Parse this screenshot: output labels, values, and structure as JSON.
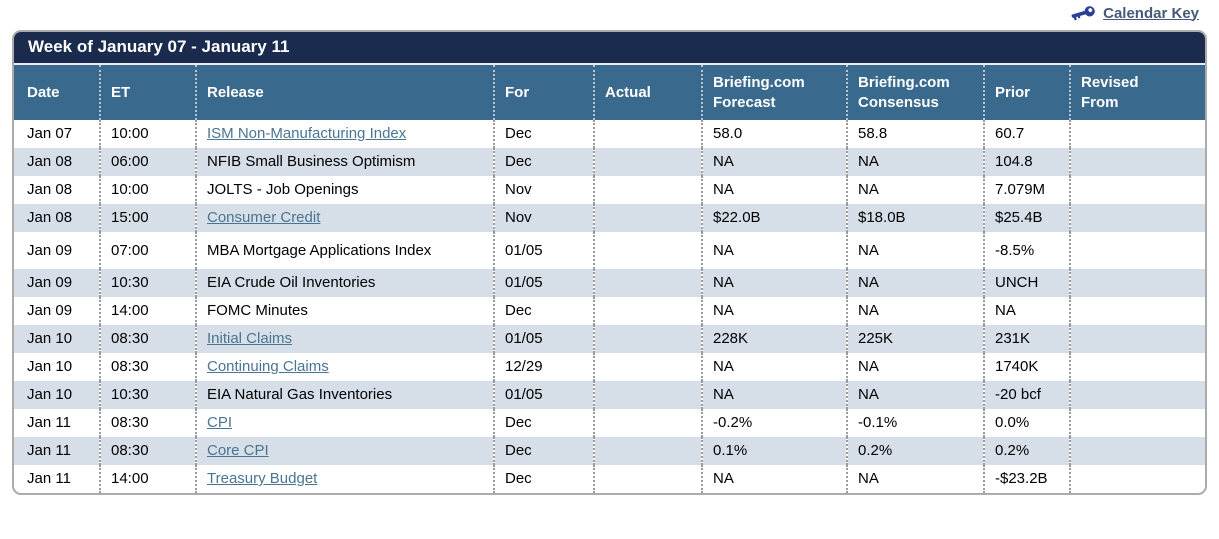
{
  "calendar_key": {
    "label": "Calendar Key",
    "icon": "key-icon"
  },
  "panel": {
    "title": "Week of January 07 - January 11",
    "columns": [
      {
        "id": "date",
        "label": "Date"
      },
      {
        "id": "et",
        "label": "ET"
      },
      {
        "id": "release",
        "label": "Release"
      },
      {
        "id": "for",
        "label": "For"
      },
      {
        "id": "actual",
        "label": "Actual"
      },
      {
        "id": "forecast",
        "label": "Briefing.com Forecast",
        "lines": [
          "Briefing.com",
          "Forecast"
        ]
      },
      {
        "id": "consensus",
        "label": "Briefing.com Consensus",
        "lines": [
          "Briefing.com",
          "Consensus"
        ]
      },
      {
        "id": "prior",
        "label": "Prior"
      },
      {
        "id": "revised",
        "label": "Revised From",
        "lines": [
          "Revised",
          "From"
        ]
      }
    ],
    "rows": [
      {
        "date": "Jan 07",
        "et": "10:00",
        "release": "ISM Non-Manufacturing Index",
        "link": true,
        "for": "Dec",
        "actual": "",
        "forecast": "58.0",
        "consensus": "58.8",
        "prior": "60.7",
        "revised": ""
      },
      {
        "date": "Jan 08",
        "et": "06:00",
        "release": "NFIB Small Business Optimism",
        "link": false,
        "for": "Dec",
        "actual": "",
        "forecast": "NA",
        "consensus": "NA",
        "prior": "104.8",
        "revised": ""
      },
      {
        "date": "Jan 08",
        "et": "10:00",
        "release": "JOLTS - Job Openings",
        "link": false,
        "for": "Nov",
        "actual": "",
        "forecast": "NA",
        "consensus": "NA",
        "prior": "7.079M",
        "revised": ""
      },
      {
        "date": "Jan 08",
        "et": "15:00",
        "release": "Consumer Credit",
        "link": true,
        "for": "Nov",
        "actual": "",
        "forecast": "$22.0B",
        "consensus": "$18.0B",
        "prior": "$25.4B",
        "revised": ""
      },
      {
        "date": "Jan 09",
        "et": "07:00",
        "release": "MBA Mortgage Applications Index",
        "link": false,
        "for": "01/05",
        "actual": "",
        "forecast": "NA",
        "consensus": "NA",
        "prior": "-8.5%",
        "revised": "",
        "tall": true
      },
      {
        "date": "Jan 09",
        "et": "10:30",
        "release": "EIA Crude Oil Inventories",
        "link": false,
        "for": "01/05",
        "actual": "",
        "forecast": "NA",
        "consensus": "NA",
        "prior": "UNCH",
        "revised": ""
      },
      {
        "date": "Jan 09",
        "et": "14:00",
        "release": "FOMC Minutes",
        "link": false,
        "for": "Dec",
        "actual": "",
        "forecast": "NA",
        "consensus": "NA",
        "prior": "NA",
        "revised": ""
      },
      {
        "date": "Jan 10",
        "et": "08:30",
        "release": "Initial Claims",
        "link": true,
        "for": "01/05",
        "actual": "",
        "forecast": "228K",
        "consensus": "225K",
        "prior": "231K",
        "revised": ""
      },
      {
        "date": "Jan 10",
        "et": "08:30",
        "release": "Continuing Claims",
        "link": true,
        "for": "12/29",
        "actual": "",
        "forecast": "NA",
        "consensus": "NA",
        "prior": "1740K",
        "revised": ""
      },
      {
        "date": "Jan 10",
        "et": "10:30",
        "release": "EIA Natural Gas Inventories",
        "link": false,
        "for": "01/05",
        "actual": "",
        "forecast": "NA",
        "consensus": "NA",
        "prior": "-20 bcf",
        "revised": ""
      },
      {
        "date": "Jan 11",
        "et": "08:30",
        "release": "CPI",
        "link": true,
        "for": "Dec",
        "actual": "",
        "forecast": "-0.2%",
        "consensus": "-0.1%",
        "prior": "0.0%",
        "revised": ""
      },
      {
        "date": "Jan 11",
        "et": "08:30",
        "release": "Core CPI",
        "link": true,
        "for": "Dec",
        "actual": "",
        "forecast": "0.1%",
        "consensus": "0.2%",
        "prior": "0.2%",
        "revised": ""
      },
      {
        "date": "Jan 11",
        "et": "14:00",
        "release": "Treasury Budget",
        "link": true,
        "for": "Dec",
        "actual": "",
        "forecast": "NA",
        "consensus": "NA",
        "prior": "-$23.2B",
        "revised": ""
      }
    ]
  },
  "colors": {
    "title_bar": "#1a2b4d",
    "header_row": "#3a698e",
    "stripe_row": "#d6dfe8",
    "link": "#4a7492",
    "key_icon": "#2b3f97",
    "panel_border": "#ababab"
  }
}
